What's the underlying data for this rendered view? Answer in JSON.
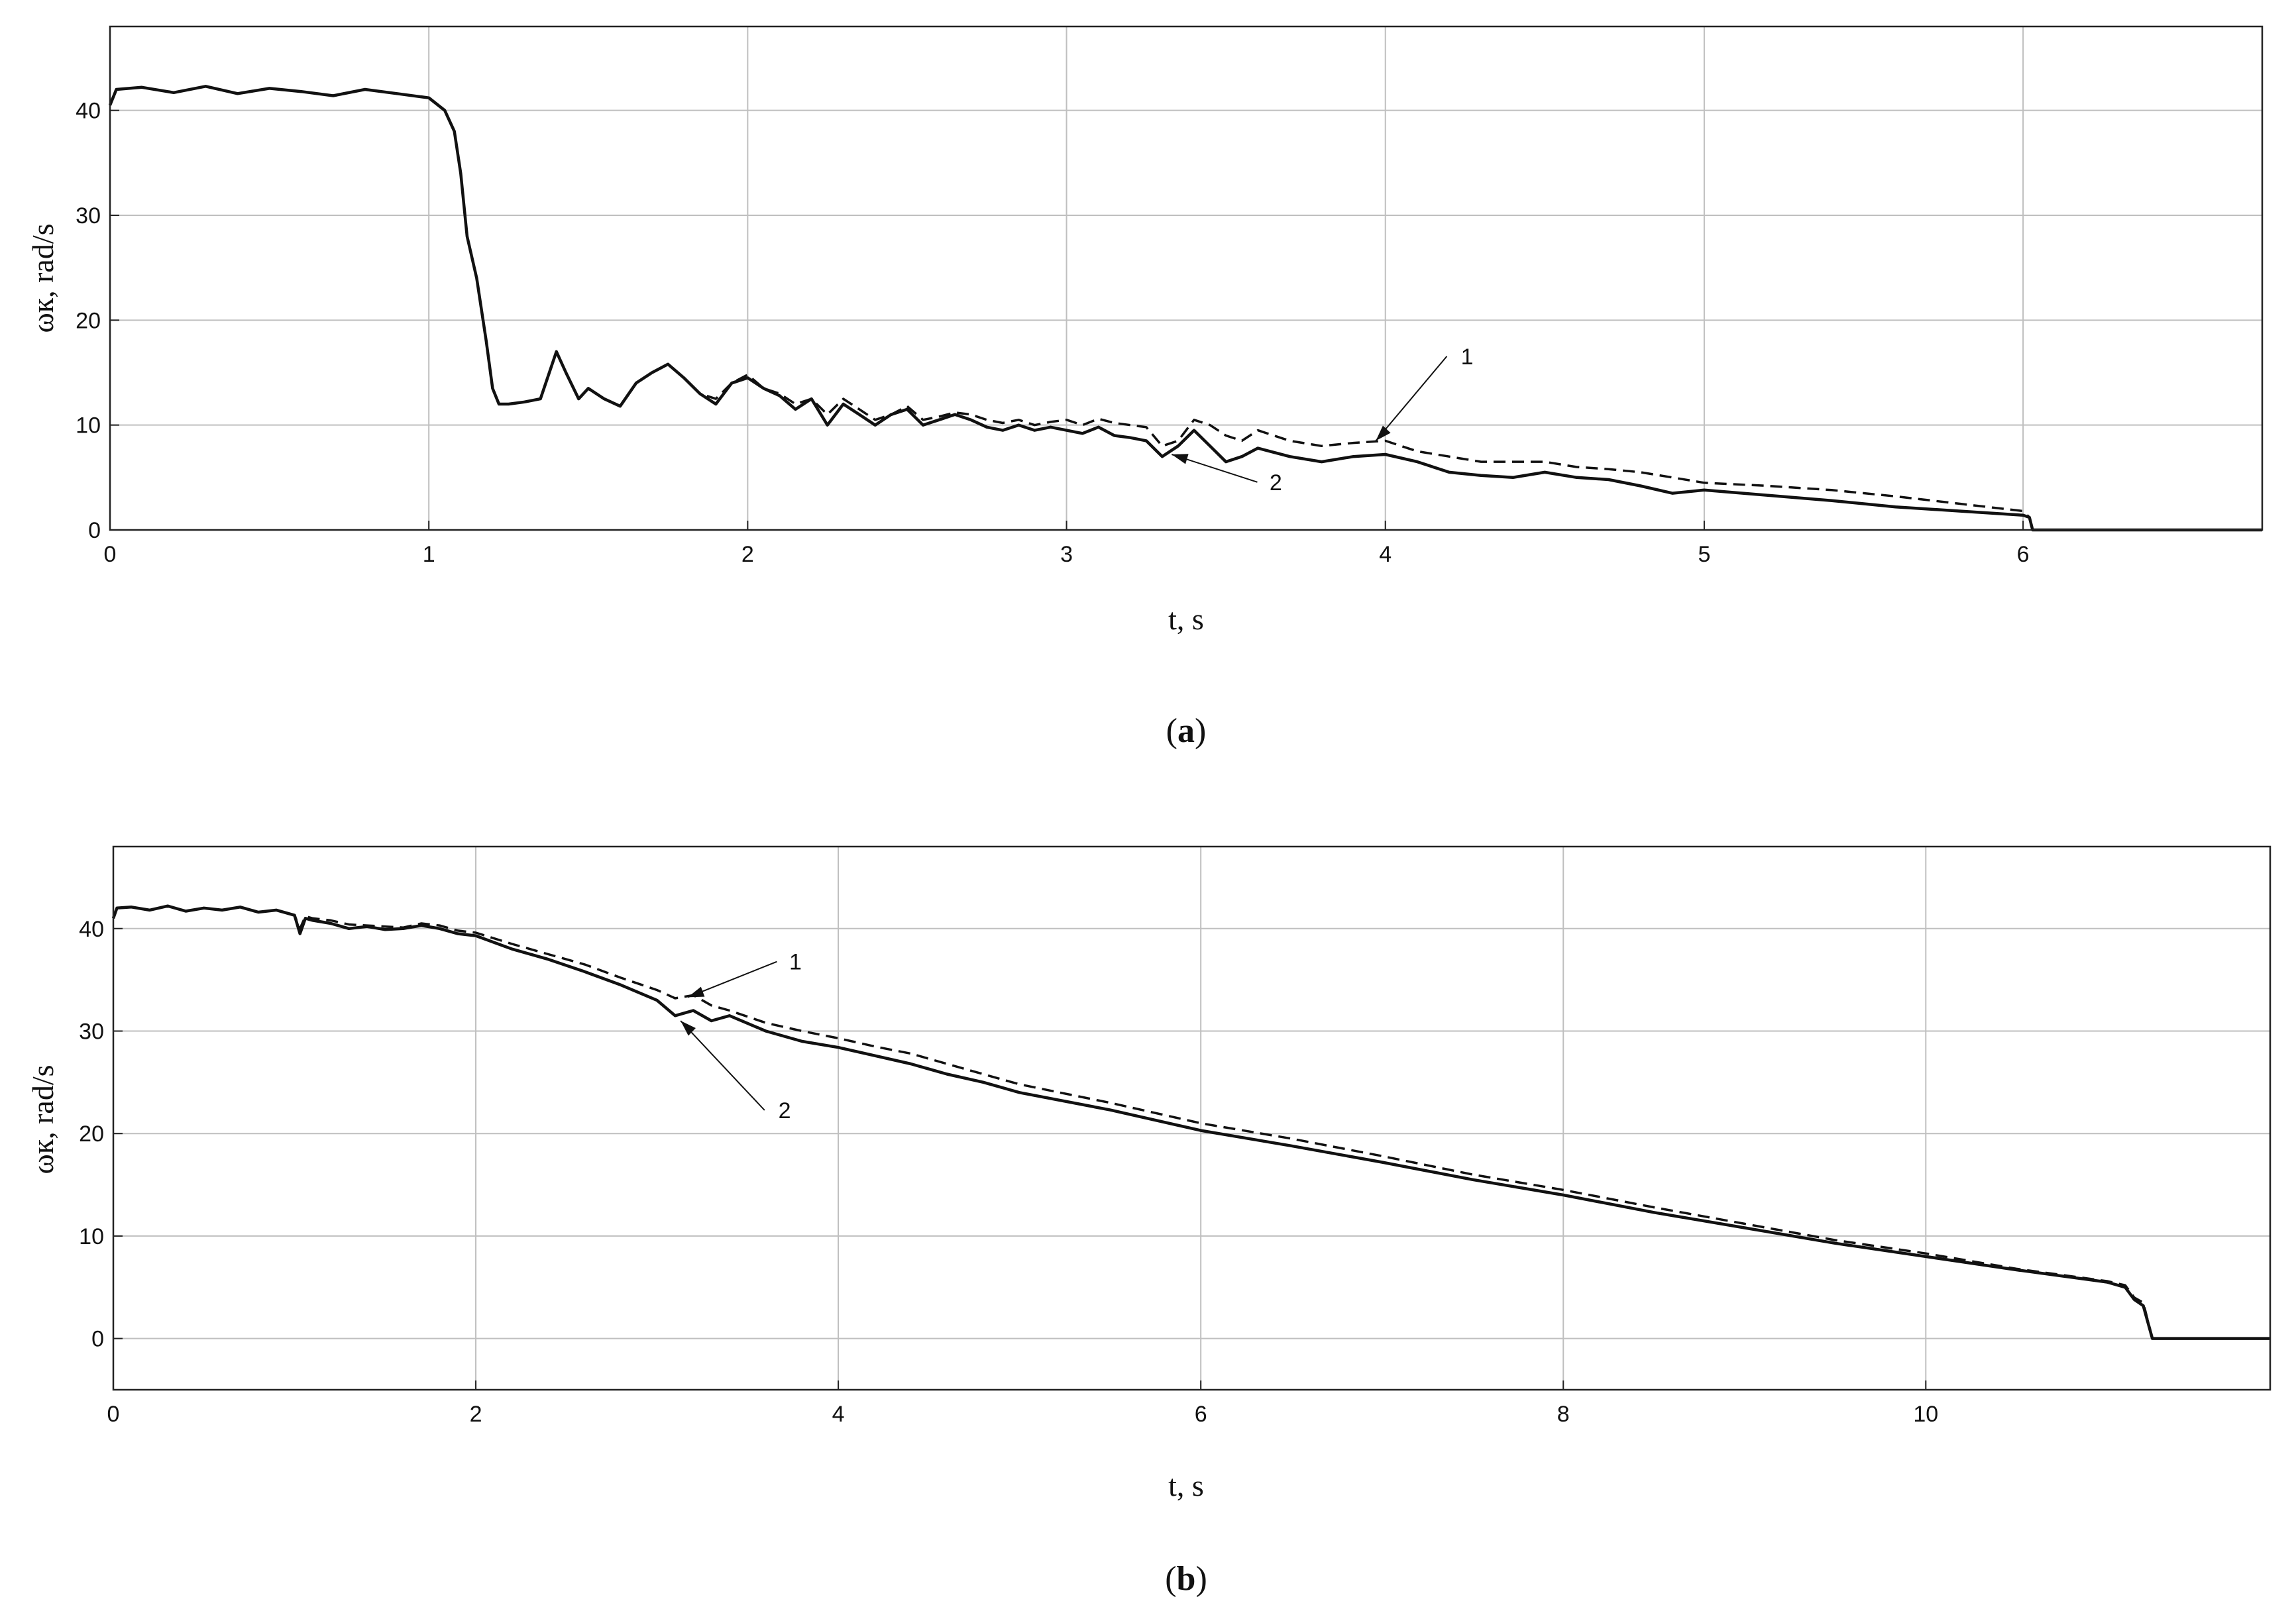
{
  "chart_data": [
    {
      "panel": "a",
      "type": "line",
      "caption_letter": "a",
      "xlabel": "t, s",
      "ylabel": "ωк, rad/s",
      "xlim": [
        0,
        6.75
      ],
      "ylim": [
        0,
        48
      ],
      "xticks": [
        0,
        1,
        2,
        3,
        4,
        5,
        6
      ],
      "yticks": [
        0,
        10,
        20,
        30,
        40
      ],
      "grid": true,
      "series": [
        {
          "name": "1",
          "style": "dashed",
          "x": [
            0,
            0.02,
            0.1,
            0.2,
            0.3,
            0.4,
            0.5,
            0.6,
            0.7,
            0.8,
            0.9,
            1.0,
            1.05,
            1.08,
            1.1,
            1.12,
            1.15,
            1.18,
            1.2,
            1.22,
            1.25,
            1.3,
            1.35,
            1.4,
            1.43,
            1.47,
            1.5,
            1.55,
            1.6,
            1.65,
            1.7,
            1.75,
            1.8,
            1.85,
            1.9,
            1.95,
            2.0,
            2.05,
            2.1,
            2.15,
            2.2,
            2.25,
            2.3,
            2.35,
            2.4,
            2.45,
            2.5,
            2.55,
            2.6,
            2.65,
            2.7,
            2.75,
            2.8,
            2.85,
            2.9,
            2.95,
            3.0,
            3.05,
            3.1,
            3.15,
            3.2,
            3.25,
            3.3,
            3.35,
            3.4,
            3.45,
            3.5,
            3.55,
            3.6,
            3.7,
            3.8,
            3.9,
            4.0,
            4.1,
            4.2,
            4.3,
            4.4,
            4.5,
            4.6,
            4.7,
            4.8,
            4.9,
            5.0,
            5.2,
            5.4,
            5.6,
            5.8,
            6.0,
            6.02,
            6.03,
            6.75
          ],
          "values": [
            40.5,
            42.0,
            42.2,
            41.7,
            42.3,
            41.6,
            42.1,
            41.8,
            41.4,
            42.0,
            41.6,
            41.2,
            40.0,
            38.0,
            34.0,
            28.0,
            24.0,
            18.0,
            13.5,
            12.0,
            12.0,
            12.2,
            12.5,
            17.0,
            15.0,
            12.5,
            13.5,
            12.5,
            11.8,
            14.0,
            15.0,
            15.8,
            14.5,
            13.0,
            12.5,
            14.0,
            14.8,
            13.5,
            13.0,
            12.0,
            12.5,
            11.0,
            12.5,
            11.5,
            10.5,
            11.0,
            11.8,
            10.5,
            10.8,
            11.2,
            11.0,
            10.5,
            10.2,
            10.5,
            10.0,
            10.3,
            10.5,
            10.0,
            10.6,
            10.2,
            10.0,
            9.8,
            8.0,
            8.5,
            10.5,
            10.0,
            9.0,
            8.5,
            9.5,
            8.5,
            8.0,
            8.3,
            8.5,
            7.5,
            7.0,
            6.5,
            6.5,
            6.5,
            6.0,
            5.8,
            5.5,
            5.0,
            4.5,
            4.2,
            3.8,
            3.2,
            2.5,
            1.8,
            1.2,
            0.0,
            0.0
          ]
        },
        {
          "name": "2",
          "style": "solid",
          "x": [
            0,
            0.02,
            0.1,
            0.2,
            0.3,
            0.4,
            0.5,
            0.6,
            0.7,
            0.8,
            0.9,
            1.0,
            1.05,
            1.08,
            1.1,
            1.12,
            1.15,
            1.18,
            1.2,
            1.22,
            1.25,
            1.3,
            1.35,
            1.4,
            1.43,
            1.47,
            1.5,
            1.55,
            1.6,
            1.65,
            1.7,
            1.75,
            1.8,
            1.85,
            1.9,
            1.95,
            2.0,
            2.05,
            2.1,
            2.15,
            2.2,
            2.25,
            2.3,
            2.35,
            2.4,
            2.45,
            2.5,
            2.55,
            2.6,
            2.65,
            2.7,
            2.75,
            2.8,
            2.85,
            2.9,
            2.95,
            3.0,
            3.05,
            3.1,
            3.15,
            3.2,
            3.25,
            3.3,
            3.35,
            3.4,
            3.45,
            3.5,
            3.55,
            3.6,
            3.7,
            3.8,
            3.9,
            4.0,
            4.1,
            4.2,
            4.3,
            4.4,
            4.5,
            4.6,
            4.7,
            4.8,
            4.9,
            5.0,
            5.2,
            5.4,
            5.6,
            5.8,
            6.0,
            6.02,
            6.03,
            6.75
          ],
          "values": [
            40.5,
            42.0,
            42.2,
            41.7,
            42.3,
            41.6,
            42.1,
            41.8,
            41.4,
            42.0,
            41.6,
            41.2,
            40.0,
            38.0,
            34.0,
            28.0,
            24.0,
            18.0,
            13.5,
            12.0,
            12.0,
            12.2,
            12.5,
            17.0,
            15.0,
            12.5,
            13.5,
            12.5,
            11.8,
            14.0,
            15.0,
            15.8,
            14.5,
            13.0,
            12.0,
            14.0,
            14.5,
            13.5,
            12.8,
            11.5,
            12.5,
            10.0,
            12.0,
            11.0,
            10.0,
            11.0,
            11.5,
            10.0,
            10.5,
            11.0,
            10.5,
            9.8,
            9.5,
            10.0,
            9.5,
            9.8,
            9.5,
            9.2,
            9.8,
            9.0,
            8.8,
            8.5,
            7.0,
            8.0,
            9.5,
            8.0,
            6.5,
            7.0,
            7.8,
            7.0,
            6.5,
            7.0,
            7.2,
            6.5,
            5.5,
            5.2,
            5.0,
            5.5,
            5.0,
            4.8,
            4.2,
            3.5,
            3.8,
            3.3,
            2.8,
            2.2,
            1.8,
            1.4,
            1.2,
            0.0,
            0.0
          ]
        }
      ],
      "annotations": [
        {
          "label": "1",
          "text_x": 4.22,
          "text_y": 15.8,
          "arrow_to_x": 3.97,
          "arrow_to_y": 8.5
        },
        {
          "label": "2",
          "text_x": 3.62,
          "text_y": 3.8,
          "arrow_to_x": 3.33,
          "arrow_to_y": 7.2
        }
      ]
    },
    {
      "panel": "b",
      "type": "line",
      "caption_letter": "b",
      "xlabel": "t, s",
      "ylabel": "ωк, rad/s",
      "xlim": [
        0,
        11.9
      ],
      "ylim": [
        -5,
        48
      ],
      "xticks": [
        0,
        2,
        4,
        6,
        8,
        10
      ],
      "yticks": [
        0,
        10,
        20,
        30,
        40
      ],
      "grid": true,
      "series": [
        {
          "name": "1",
          "style": "dashed",
          "x": [
            0,
            0.02,
            0.1,
            0.2,
            0.3,
            0.4,
            0.5,
            0.6,
            0.7,
            0.8,
            0.9,
            1.0,
            1.03,
            1.06,
            1.1,
            1.2,
            1.3,
            1.4,
            1.5,
            1.6,
            1.7,
            1.8,
            1.9,
            2.0,
            2.2,
            2.4,
            2.6,
            2.8,
            3.0,
            3.1,
            3.2,
            3.3,
            3.4,
            3.6,
            3.8,
            4.0,
            4.2,
            4.4,
            4.6,
            4.8,
            5.0,
            5.5,
            6.0,
            6.5,
            7.0,
            7.5,
            8.0,
            8.5,
            9.0,
            9.5,
            10.0,
            10.5,
            11.0,
            11.1,
            11.15,
            11.2,
            11.25,
            11.9
          ],
          "values": [
            41.0,
            42.0,
            42.1,
            41.8,
            42.2,
            41.7,
            42.0,
            41.8,
            42.1,
            41.6,
            41.8,
            41.3,
            40.0,
            41.2,
            41.0,
            40.8,
            40.4,
            40.3,
            40.2,
            40.1,
            40.5,
            40.3,
            39.8,
            39.6,
            38.5,
            37.5,
            36.5,
            35.2,
            34.0,
            33.2,
            33.5,
            32.5,
            32.0,
            30.8,
            30.0,
            29.3,
            28.5,
            27.8,
            26.8,
            25.8,
            24.8,
            23.0,
            21.0,
            19.5,
            17.8,
            16.0,
            14.5,
            12.8,
            11.2,
            9.6,
            8.3,
            6.8,
            5.6,
            5.2,
            4.0,
            3.5,
            0.0,
            0.0
          ]
        },
        {
          "name": "2",
          "style": "solid",
          "x": [
            0,
            0.02,
            0.1,
            0.2,
            0.3,
            0.4,
            0.5,
            0.6,
            0.7,
            0.8,
            0.9,
            1.0,
            1.03,
            1.06,
            1.1,
            1.2,
            1.3,
            1.4,
            1.5,
            1.6,
            1.7,
            1.8,
            1.9,
            2.0,
            2.2,
            2.4,
            2.6,
            2.8,
            3.0,
            3.1,
            3.2,
            3.3,
            3.4,
            3.6,
            3.8,
            4.0,
            4.2,
            4.4,
            4.6,
            4.8,
            5.0,
            5.5,
            6.0,
            6.5,
            7.0,
            7.5,
            8.0,
            8.5,
            9.0,
            9.5,
            10.0,
            10.5,
            11.0,
            11.1,
            11.15,
            11.2,
            11.25,
            11.9
          ],
          "values": [
            41.0,
            42.0,
            42.1,
            41.8,
            42.2,
            41.7,
            42.0,
            41.8,
            42.1,
            41.6,
            41.8,
            41.3,
            39.5,
            41.0,
            40.8,
            40.5,
            40.0,
            40.2,
            39.9,
            40.0,
            40.3,
            40.0,
            39.5,
            39.3,
            38.0,
            37.0,
            35.8,
            34.5,
            33.0,
            31.5,
            32.0,
            31.0,
            31.5,
            30.0,
            29.0,
            28.4,
            27.6,
            26.8,
            25.8,
            25.0,
            24.0,
            22.3,
            20.3,
            18.8,
            17.2,
            15.5,
            14.0,
            12.3,
            10.8,
            9.3,
            8.0,
            6.7,
            5.5,
            5.0,
            3.8,
            3.2,
            0.0,
            0.0
          ]
        }
      ],
      "annotations": [
        {
          "label": "1",
          "text_x": 3.7,
          "text_y": 36.0,
          "arrow_to_x": 3.17,
          "arrow_to_y": 33.3
        },
        {
          "label": "2",
          "text_x": 3.64,
          "text_y": 21.5,
          "arrow_to_x": 3.13,
          "arrow_to_y": 31.0
        }
      ]
    }
  ]
}
